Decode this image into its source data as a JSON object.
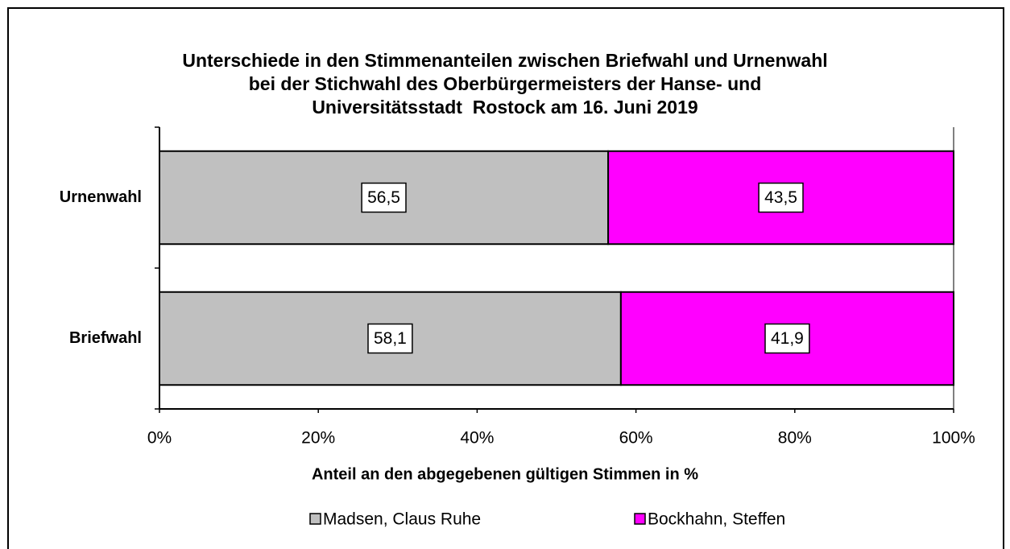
{
  "chart_data": {
    "type": "stacked_bar_horizontal",
    "title": [
      "Unterschiede in den Stimmenanteilen zwischen Briefwahl und Urnenwahl",
      "bei der Stichwahl des Oberbürgermeisters der Hanse- und",
      "Universitätsstadt  Rostock am 16. Juni 2019"
    ],
    "x_label": "Anteil an den abgegebenen gültigen Stimmen in %",
    "categories": [
      "Urnenwahl",
      "Briefwahl"
    ],
    "series": [
      {
        "name": "Madsen, Claus Ruhe",
        "color": "#c0c0c0",
        "values": [
          56.5,
          58.1
        ],
        "value_labels": [
          "56,5",
          "58,1"
        ]
      },
      {
        "name": "Bockhahn, Steffen",
        "color": "#ff00ff",
        "values": [
          43.5,
          41.9
        ],
        "value_labels": [
          "43,5",
          "41,9"
        ]
      }
    ],
    "xlim": [
      0,
      100
    ],
    "xticks": [
      {
        "value": 0,
        "label": "0%"
      },
      {
        "value": 20,
        "label": "20%"
      },
      {
        "value": 40,
        "label": "40%"
      },
      {
        "value": 60,
        "label": "60%"
      },
      {
        "value": 80,
        "label": "80%"
      },
      {
        "value": 100,
        "label": "100%"
      }
    ],
    "legend": "bottom"
  }
}
